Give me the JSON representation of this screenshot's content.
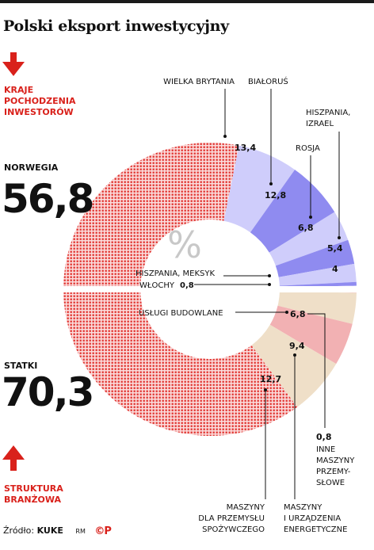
{
  "title": "Polski eksport inwestycyjny",
  "source_label": "Źródło:",
  "source_name": "KUKE",
  "author": "RM",
  "brand": "©P",
  "colors": {
    "accent_red": "#d9211b",
    "dotted_red": "#e23a36",
    "blue_light": "#cfcdfb",
    "blue_dark": "#8f8bf0",
    "beige": "#efdfc8",
    "pink": "#f2b1b3",
    "pink_light": "#f6c9ca"
  },
  "chart_data": [
    {
      "type": "pie",
      "title": "KRAJE POCHODZENIA INWESTORÓW",
      "slices": [
        {
          "label": "NORWEGIA",
          "value": 56.8,
          "value_label": "56,8",
          "style": "dotted_red"
        },
        {
          "label": "WIELKA BRYTANIA",
          "value": 13.4,
          "value_label": "13,4",
          "style": "blue_light"
        },
        {
          "label": "BIAŁORUŚ",
          "value": 12.8,
          "value_label": "12,8",
          "style": "blue_dark"
        },
        {
          "label": "ROSJA",
          "value": 6.8,
          "value_label": "6,8",
          "style": "blue_light"
        },
        {
          "label": "HISZPANIA, IZRAEL",
          "value": 5.4,
          "value_label": "5,4",
          "style": "blue_dark"
        },
        {
          "label": "",
          "value": 4,
          "value_label": "4",
          "style": "blue_light"
        },
        {
          "label": "HISZPANIA, MEKSYK",
          "value": 0.8,
          "value_label": "",
          "style": "blue_dark"
        },
        {
          "label": "WŁOCHY",
          "value": 0.8,
          "value_label": "0,8",
          "style": "blue_light"
        }
      ]
    },
    {
      "type": "pie",
      "title": "STRUKTURA BRANŻOWA",
      "slices": [
        {
          "label": "STATKI",
          "value": 70.3,
          "value_label": "70,3",
          "style": "dotted_red"
        },
        {
          "label": "MASZYNY DLA PRZEMYSŁU SPOŻYWCZEGO",
          "value": 12.7,
          "value_label": "12,7",
          "style": "beige"
        },
        {
          "label": "MASZYNY I URZĄDZENIA ENERGETYCZNE",
          "value": 9.4,
          "value_label": "9,4",
          "style": "pink"
        },
        {
          "label": "USŁUGI BUDOWLANE",
          "value": 6.8,
          "value_label": "6,8",
          "style": "beige"
        },
        {
          "label": "INNE MASZYNY PRZEMYSŁOWE",
          "value": 0.8,
          "value_label": "0,8",
          "style": "pink_light"
        }
      ]
    }
  ],
  "center_symbol": "%",
  "text": {
    "top_heading": [
      "KRAJE",
      "POCHODZENIA",
      "INWESTORÓW"
    ],
    "bottom_heading": [
      "STRUKTURA",
      "BRANŻOWA"
    ],
    "norwegia": "NORWEGIA",
    "norwegia_value": "56,8",
    "statki": "STATKI",
    "statki_value": "70,3",
    "wielka_brytania": "WIELKA BRYTANIA",
    "bialorus": "BIAŁORUŚ",
    "hiszpania_izrael": [
      "HISZPANIA,",
      "IZRAEL"
    ],
    "rosja": "ROSJA",
    "hiszpania_meksyk": "HISZPANIA, MEKSYK",
    "wlochy": "WŁOCHY",
    "wlochy_value": "0,8",
    "v_134": "13,4",
    "v_128": "12,8",
    "v_68a": "6,8",
    "v_54": "5,4",
    "v_4": "4",
    "uslugi": "USŁUGI BUDOWLANE",
    "v_68b": "6,8",
    "v_94": "9,4",
    "v_127": "12,7",
    "inne_value": "0,8",
    "inne": [
      "INNE",
      "MASZYNY",
      "PRZEMY-",
      "SŁOWE"
    ],
    "maszyny_spoz": [
      "MASZYNY",
      "DLA PRZEMYSŁU",
      "SPOŻYWCZEGO"
    ],
    "maszyny_energ": [
      "MASZYNY",
      "I URZĄDZENIA",
      "ENERGETYCZNE"
    ]
  }
}
